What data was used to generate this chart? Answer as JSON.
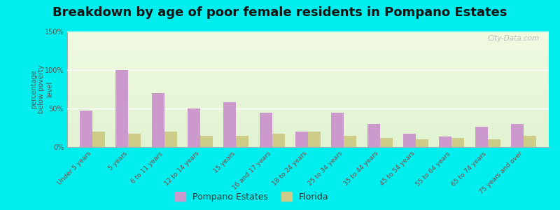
{
  "title": "Breakdown by age of poor female residents in Pompano Estates",
  "ylabel": "percentage\nbelow poverty\nlevel",
  "categories": [
    "Under 5 years",
    "5 years",
    "6 to 11 years",
    "12 to 14 years",
    "15 years",
    "16 and 17 years",
    "18 to 24 years",
    "25 to 34 years",
    "35 to 44 years",
    "45 to 54 years",
    "55 to 64 years",
    "65 to 74 years",
    "75 years and over"
  ],
  "pompano_values": [
    47,
    100,
    70,
    50,
    58,
    45,
    20,
    45,
    30,
    17,
    14,
    26,
    30
  ],
  "florida_values": [
    20,
    17,
    20,
    15,
    15,
    17,
    20,
    15,
    12,
    10,
    12,
    10,
    15
  ],
  "pompano_color": "#cc99cc",
  "florida_color": "#cccc88",
  "ylim": [
    0,
    150
  ],
  "yticks": [
    0,
    50,
    100,
    150
  ],
  "ytick_labels": [
    "0%",
    "50%",
    "100%",
    "150%"
  ],
  "outer_bg": "#00eeee",
  "title_fontsize": 13,
  "legend_labels": [
    "Pompano Estates",
    "Florida"
  ],
  "watermark": "City-Data.com"
}
